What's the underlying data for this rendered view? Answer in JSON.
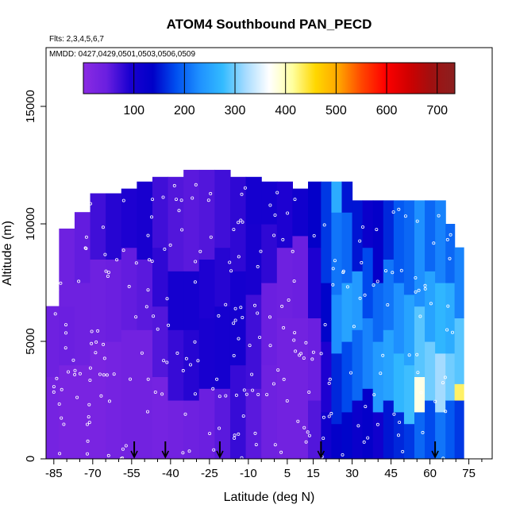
{
  "chart_data": {
    "type": "heatmap",
    "title": "ATOM4 Southbound PAN_PECD",
    "subtitle": "Flts: 2,3,4,5,6,7",
    "annotation": "MMDD: 0427,0429,0501,0503,0506,0509",
    "xlabel": "Latitude (deg N)",
    "ylabel": "Altitude (m)",
    "xlim": [
      -88,
      84
    ],
    "ylim": [
      0,
      17500
    ],
    "x_ticks": [
      -85,
      -70,
      -55,
      -40,
      -25,
      -10,
      5,
      15,
      30,
      45,
      60,
      75
    ],
    "x_tick_labels": [
      "-85",
      "-70",
      "-55",
      "-40",
      "-25",
      "-10",
      "5",
      "15",
      "30",
      "45",
      "60",
      "75"
    ],
    "x_minor_ticks": [
      -80,
      -75,
      -65,
      -60,
      -50,
      -45,
      -35,
      -30,
      -20,
      -15,
      -5,
      0,
      10,
      20,
      25,
      35,
      40,
      50,
      55,
      65,
      70,
      80
    ],
    "y_ticks": [
      0,
      5000,
      10000,
      15000
    ],
    "y_tick_labels": [
      "0",
      "5000",
      "10000",
      "15000"
    ],
    "colorbar": {
      "min": 0,
      "max": 735,
      "ticks": [
        100,
        200,
        300,
        400,
        500,
        600,
        700
      ],
      "tick_labels": [
        "100",
        "200",
        "300",
        "400",
        "500",
        "600",
        "700"
      ],
      "colors": [
        "#8A2BE2",
        "#6A1FE0",
        "#1A00D0",
        "#0000C8",
        "#0050F0",
        "#1E90FF",
        "#33BBFF",
        "#A8DCFF",
        "#FFFFFF",
        "#FFFFA0",
        "#FFD700",
        "#FFA500",
        "#FF4500",
        "#FF0000",
        "#D00000",
        "#A01010",
        "#8B2020"
      ]
    },
    "profile_latitudes": [
      -54,
      -42,
      -21,
      18,
      62
    ],
    "columns": [
      {
        "lat": -86,
        "top": 6500,
        "segments": [
          [
            0,
            3500,
            30
          ],
          [
            3500,
            6500,
            40
          ]
        ]
      },
      {
        "lat": -80,
        "top": 9800,
        "segments": [
          [
            0,
            4000,
            25
          ],
          [
            4000,
            6500,
            45
          ],
          [
            6500,
            9800,
            40
          ]
        ]
      },
      {
        "lat": -74,
        "top": 10500,
        "segments": [
          [
            0,
            4000,
            25
          ],
          [
            4000,
            7500,
            40
          ],
          [
            7500,
            10500,
            50
          ]
        ]
      },
      {
        "lat": -68,
        "top": 11300,
        "segments": [
          [
            0,
            5000,
            25
          ],
          [
            5000,
            8500,
            40
          ],
          [
            8500,
            11300,
            70
          ]
        ]
      },
      {
        "lat": -62,
        "top": 11300,
        "segments": [
          [
            0,
            5000,
            30
          ],
          [
            5000,
            8500,
            45
          ],
          [
            8500,
            11300,
            85
          ]
        ]
      },
      {
        "lat": -56,
        "top": 11500,
        "segments": [
          [
            0,
            5500,
            35
          ],
          [
            5500,
            9000,
            50
          ],
          [
            9000,
            11500,
            90
          ]
        ]
      },
      {
        "lat": -50,
        "top": 11800,
        "segments": [
          [
            0,
            5500,
            35
          ],
          [
            5500,
            8500,
            55
          ],
          [
            8500,
            11800,
            95
          ]
        ]
      },
      {
        "lat": -44,
        "top": 12000,
        "segments": [
          [
            0,
            3500,
            30
          ],
          [
            3500,
            6500,
            60
          ],
          [
            6500,
            9000,
            80
          ],
          [
            9000,
            12000,
            70
          ]
        ]
      },
      {
        "lat": -38,
        "top": 12000,
        "segments": [
          [
            0,
            2500,
            35
          ],
          [
            2500,
            5500,
            75
          ],
          [
            5500,
            8000,
            100
          ],
          [
            8000,
            12000,
            60
          ]
        ]
      },
      {
        "lat": -32,
        "top": 12300,
        "segments": [
          [
            0,
            2500,
            40
          ],
          [
            2500,
            5500,
            85
          ],
          [
            5500,
            8000,
            100
          ],
          [
            8000,
            12300,
            55
          ]
        ]
      },
      {
        "lat": -26,
        "top": 12300,
        "segments": [
          [
            0,
            3000,
            45
          ],
          [
            3000,
            6000,
            95
          ],
          [
            6000,
            8500,
            90
          ],
          [
            8500,
            12300,
            60
          ]
        ]
      },
      {
        "lat": -20,
        "top": 12300,
        "segments": [
          [
            0,
            3000,
            55
          ],
          [
            3000,
            6500,
            100
          ],
          [
            6500,
            9000,
            85
          ],
          [
            9000,
            12300,
            70
          ]
        ]
      },
      {
        "lat": -14,
        "top": 12000,
        "segments": [
          [
            0,
            4000,
            75
          ],
          [
            4000,
            8000,
            100
          ],
          [
            8000,
            12000,
            80
          ]
        ]
      },
      {
        "lat": -8,
        "top": 12000,
        "segments": [
          [
            0,
            3000,
            55
          ],
          [
            3000,
            7000,
            70
          ],
          [
            7000,
            10000,
            95
          ],
          [
            10000,
            12000,
            100
          ]
        ]
      },
      {
        "lat": -2,
        "top": 11800,
        "segments": [
          [
            0,
            4000,
            40
          ],
          [
            4000,
            7500,
            45
          ],
          [
            7500,
            10000,
            80
          ],
          [
            10000,
            11800,
            100
          ]
        ]
      },
      {
        "lat": 4,
        "top": 11800,
        "segments": [
          [
            0,
            6000,
            35
          ],
          [
            6000,
            9000,
            40
          ],
          [
            9000,
            11800,
            90
          ]
        ]
      },
      {
        "lat": 10,
        "top": 11500,
        "segments": [
          [
            0,
            6000,
            35
          ],
          [
            6000,
            9500,
            45
          ],
          [
            9500,
            11500,
            110
          ]
        ]
      },
      {
        "lat": 16,
        "top": 11800,
        "segments": [
          [
            0,
            2500,
            60
          ],
          [
            2500,
            6000,
            45
          ],
          [
            6000,
            9000,
            90
          ],
          [
            9000,
            11800,
            130
          ]
        ]
      },
      {
        "lat": 20,
        "top": 11800,
        "segments": [
          [
            0,
            2000,
            110
          ],
          [
            2000,
            5000,
            90
          ],
          [
            5000,
            7500,
            140
          ],
          [
            7500,
            11800,
            170
          ]
        ]
      },
      {
        "lat": 24,
        "top": 11800,
        "segments": [
          [
            0,
            1500,
            130
          ],
          [
            1500,
            4500,
            160
          ],
          [
            4500,
            7000,
            230
          ],
          [
            7000,
            10500,
            210
          ],
          [
            10500,
            11800,
            260
          ]
        ]
      },
      {
        "lat": 28,
        "top": 11800,
        "segments": [
          [
            0,
            2000,
            140
          ],
          [
            2000,
            5000,
            180
          ],
          [
            5000,
            7500,
            250
          ],
          [
            7500,
            10500,
            200
          ],
          [
            10500,
            11800,
            150
          ]
        ]
      },
      {
        "lat": 32,
        "top": 11000,
        "segments": [
          [
            0,
            2500,
            120
          ],
          [
            2500,
            5500,
            200
          ],
          [
            5500,
            8000,
            240
          ],
          [
            8000,
            11000,
            150
          ]
        ]
      },
      {
        "lat": 36,
        "top": 11000,
        "segments": [
          [
            0,
            3000,
            130
          ],
          [
            3000,
            6000,
            220
          ],
          [
            6000,
            9000,
            180
          ],
          [
            9000,
            11000,
            120
          ]
        ]
      },
      {
        "lat": 40,
        "top": 11000,
        "segments": [
          [
            0,
            2000,
            110
          ],
          [
            2000,
            5000,
            240
          ],
          [
            5000,
            7500,
            200
          ],
          [
            7500,
            11000,
            130
          ]
        ]
      },
      {
        "lat": 44,
        "top": 11000,
        "segments": [
          [
            0,
            2500,
            150
          ],
          [
            2500,
            5500,
            250
          ],
          [
            5500,
            8500,
            210
          ],
          [
            8500,
            11000,
            160
          ]
        ]
      },
      {
        "lat": 48,
        "top": 11000,
        "segments": [
          [
            0,
            2000,
            160
          ],
          [
            2000,
            4500,
            270
          ],
          [
            4500,
            7500,
            230
          ],
          [
            7500,
            11000,
            190
          ]
        ]
      },
      {
        "lat": 52,
        "top": 11000,
        "segments": [
          [
            0,
            1500,
            170
          ],
          [
            1500,
            4000,
            280
          ],
          [
            4000,
            7000,
            250
          ],
          [
            7000,
            11000,
            200
          ]
        ]
      },
      {
        "lat": 56,
        "top": 11000,
        "segments": [
          [
            0,
            2000,
            200
          ],
          [
            2000,
            3500,
            380
          ],
          [
            3500,
            6500,
            290
          ],
          [
            6500,
            11000,
            230
          ]
        ]
      },
      {
        "lat": 60,
        "top": 11000,
        "segments": [
          [
            0,
            2500,
            180
          ],
          [
            2500,
            5000,
            300
          ],
          [
            5000,
            8000,
            250
          ],
          [
            8000,
            11000,
            200
          ]
        ]
      },
      {
        "lat": 64,
        "top": 11000,
        "segments": [
          [
            0,
            2000,
            210
          ],
          [
            2000,
            4500,
            320
          ],
          [
            4500,
            7500,
            270
          ],
          [
            7500,
            11000,
            220
          ]
        ]
      },
      {
        "lat": 68,
        "top": 10000,
        "segments": [
          [
            0,
            2500,
            190
          ],
          [
            2500,
            4500,
            300
          ],
          [
            4500,
            7500,
            260
          ],
          [
            7500,
            10000,
            200
          ]
        ]
      },
      {
        "lat": 71,
        "top": 9000,
        "segments": [
          [
            0,
            2500,
            170
          ],
          [
            2500,
            3200,
            430
          ],
          [
            3200,
            6000,
            290
          ],
          [
            6000,
            9000,
            220
          ]
        ]
      }
    ],
    "grid": false,
    "legend": "colorbar-top"
  }
}
